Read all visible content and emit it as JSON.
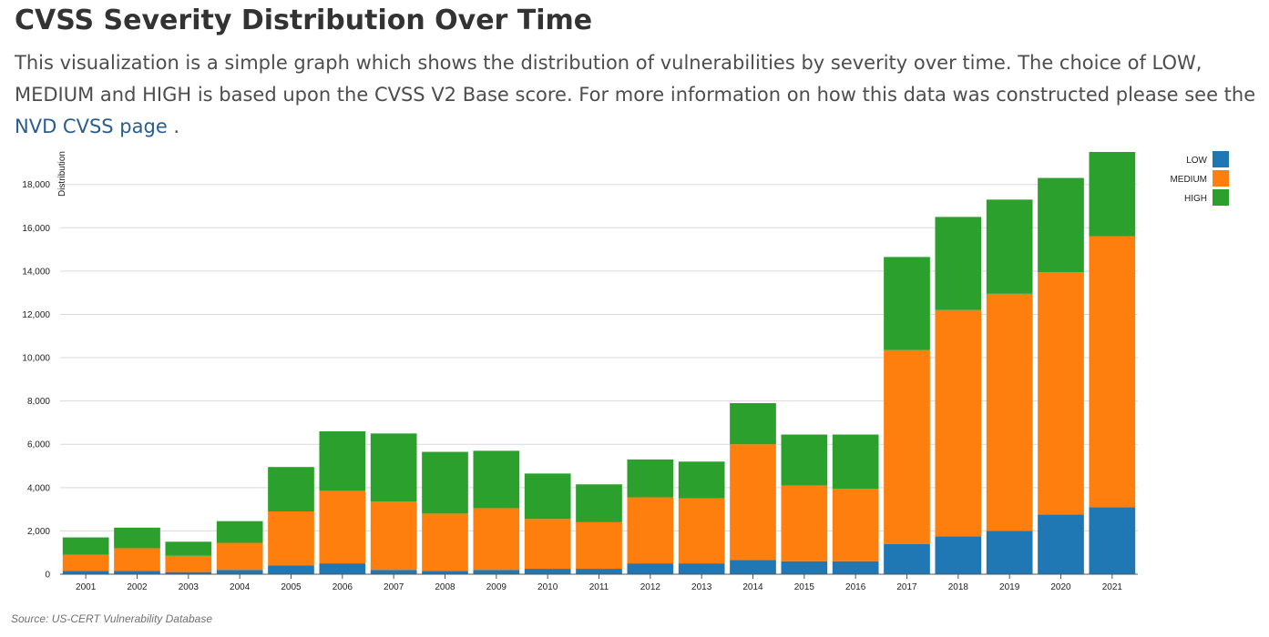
{
  "page": {
    "title": "CVSS Severity Distribution Over Time",
    "intro_before_link": "This visualization is a simple graph which shows the distribution of vulnerabilities by severity over time. The choice of LOW, MEDIUM and HIGH is based upon the CVSS V2 Base score. For more information on how this data was constructed please see the ",
    "link_text": "NVD CVSS page",
    "intro_after_link": " .",
    "source": "Source: US-CERT Vulnerability Database"
  },
  "colors": {
    "low": "#1f77b4",
    "medium": "#ff7f0e",
    "high": "#2ca02c",
    "link": "#2a5d8f",
    "grid": "#d9d9d9"
  },
  "chart_data": {
    "type": "bar",
    "stacked": true,
    "title": "",
    "xlabel": "",
    "ylabel": "Distribution",
    "ylim": [
      0,
      19500
    ],
    "yticks": [
      0,
      2000,
      4000,
      6000,
      8000,
      10000,
      12000,
      14000,
      16000,
      18000
    ],
    "ytick_labels": [
      "0",
      "2,000",
      "4,000",
      "6,000",
      "8,000",
      "10,000",
      "12,000",
      "14,000",
      "16,000",
      "18,000"
    ],
    "grid": true,
    "legend_position": "top-right",
    "categories": [
      "2001",
      "2002",
      "2003",
      "2004",
      "2005",
      "2006",
      "2007",
      "2008",
      "2009",
      "2010",
      "2011",
      "2012",
      "2013",
      "2014",
      "2015",
      "2016",
      "2017",
      "2018",
      "2019",
      "2020",
      "2021"
    ],
    "series": [
      {
        "name": "LOW",
        "color": "#1f77b4",
        "values": [
          150,
          150,
          100,
          200,
          400,
          500,
          200,
          150,
          200,
          250,
          250,
          500,
          500,
          650,
          600,
          600,
          1400,
          1750,
          2000,
          2750,
          3100
        ]
      },
      {
        "name": "MEDIUM",
        "color": "#ff7f0e",
        "values": [
          750,
          1050,
          750,
          1250,
          2500,
          3350,
          3150,
          2650,
          2850,
          2300,
          2150,
          3050,
          3000,
          5350,
          3500,
          3350,
          8950,
          10450,
          10950,
          11200,
          12500
        ]
      },
      {
        "name": "HIGH",
        "color": "#2ca02c",
        "values": [
          800,
          950,
          650,
          1000,
          2050,
          2750,
          3150,
          2850,
          2650,
          2100,
          1750,
          1750,
          1700,
          1900,
          2350,
          2500,
          4300,
          4300,
          4350,
          4350,
          3900
        ]
      }
    ]
  }
}
